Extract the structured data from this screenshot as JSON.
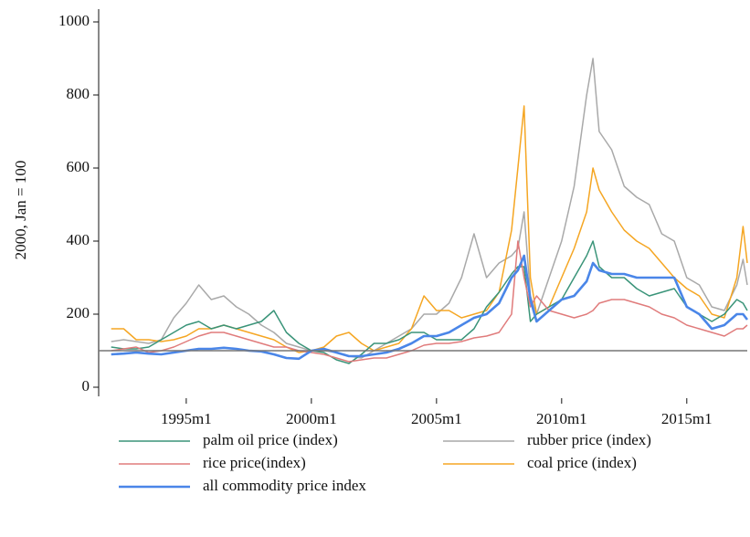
{
  "chart_data": {
    "type": "line",
    "y_label": "2000, Jan = 100",
    "x": [
      "1992m1",
      "1992m7",
      "1993m1",
      "1993m7",
      "1994m1",
      "1994m7",
      "1995m1",
      "1995m7",
      "1996m1",
      "1996m7",
      "1997m1",
      "1997m7",
      "1998m1",
      "1998m7",
      "1999m1",
      "1999m7",
      "2000m1",
      "2000m7",
      "2001m1",
      "2001m7",
      "2002m1",
      "2002m7",
      "2003m1",
      "2003m7",
      "2004m1",
      "2004m7",
      "2005m1",
      "2005m7",
      "2006m1",
      "2006m7",
      "2007m1",
      "2007m7",
      "2008m1",
      "2008m4",
      "2008m7",
      "2008m10",
      "2009m1",
      "2009m7",
      "2010m1",
      "2010m7",
      "2011m1",
      "2011m4",
      "2011m7",
      "2012m1",
      "2012m7",
      "2013m1",
      "2013m7",
      "2014m1",
      "2014m7",
      "2015m1",
      "2015m7",
      "2016m1",
      "2016m7",
      "2017m1",
      "2017m4",
      "2017m6"
    ],
    "series": [
      {
        "name": "palm oil price (index)",
        "color": "#3a9479",
        "width": 1.5,
        "values": [
          110,
          105,
          105,
          110,
          130,
          150,
          170,
          180,
          160,
          170,
          160,
          170,
          180,
          210,
          150,
          120,
          100,
          95,
          75,
          65,
          90,
          120,
          120,
          130,
          150,
          150,
          130,
          130,
          130,
          160,
          220,
          260,
          310,
          330,
          330,
          180,
          200,
          220,
          240,
          300,
          360,
          400,
          330,
          300,
          300,
          270,
          250,
          260,
          270,
          220,
          200,
          180,
          200,
          240,
          230,
          210
        ]
      },
      {
        "name": "rice price(index)",
        "color": "#e07b7b",
        "width": 1.5,
        "values": [
          100,
          105,
          110,
          95,
          100,
          110,
          125,
          140,
          150,
          150,
          140,
          130,
          120,
          110,
          110,
          100,
          95,
          90,
          80,
          70,
          75,
          80,
          80,
          90,
          100,
          115,
          120,
          120,
          125,
          135,
          140,
          150,
          200,
          400,
          300,
          220,
          250,
          210,
          200,
          190,
          200,
          210,
          230,
          240,
          240,
          230,
          220,
          200,
          190,
          170,
          160,
          150,
          140,
          160,
          160,
          170
        ]
      },
      {
        "name": "all commodity price index",
        "color": "#4a86e8",
        "width": 2.6,
        "values": [
          90,
          92,
          95,
          92,
          90,
          95,
          100,
          105,
          105,
          108,
          105,
          100,
          98,
          90,
          80,
          78,
          100,
          105,
          95,
          85,
          85,
          90,
          95,
          105,
          120,
          140,
          140,
          150,
          170,
          190,
          200,
          230,
          300,
          320,
          360,
          240,
          180,
          210,
          240,
          250,
          290,
          340,
          320,
          310,
          310,
          300,
          300,
          300,
          300,
          220,
          200,
          160,
          170,
          200,
          200,
          185
        ]
      },
      {
        "name": "rubber price (index)",
        "color": "#a9a9a9",
        "width": 1.5,
        "values": [
          125,
          130,
          125,
          120,
          130,
          190,
          230,
          280,
          240,
          250,
          220,
          200,
          170,
          150,
          120,
          110,
          100,
          100,
          95,
          85,
          80,
          100,
          120,
          140,
          160,
          200,
          200,
          230,
          300,
          420,
          300,
          340,
          360,
          380,
          480,
          250,
          200,
          300,
          400,
          550,
          800,
          900,
          700,
          650,
          550,
          520,
          500,
          420,
          400,
          300,
          280,
          220,
          210,
          280,
          350,
          280
        ]
      },
      {
        "name": "coal price (index)",
        "color": "#f5a623",
        "width": 1.5,
        "values": [
          160,
          160,
          130,
          130,
          125,
          130,
          140,
          160,
          160,
          170,
          160,
          150,
          140,
          130,
          110,
          95,
          100,
          110,
          140,
          150,
          120,
          100,
          110,
          120,
          160,
          250,
          210,
          210,
          190,
          200,
          210,
          260,
          430,
          600,
          770,
          300,
          200,
          220,
          300,
          380,
          480,
          600,
          540,
          480,
          430,
          400,
          380,
          340,
          300,
          270,
          250,
          200,
          190,
          300,
          440,
          340
        ]
      }
    ],
    "xlim": [
      "1991m7",
      "2017m6"
    ],
    "xticks": [
      "1995m1",
      "2000m1",
      "2005m1",
      "2010m1",
      "2015m1"
    ],
    "ylim": [
      -25,
      1035
    ],
    "yticks": [
      0,
      200,
      400,
      600,
      800,
      1000
    ],
    "reference_line": 100,
    "reference_color": "#777777",
    "legend": "bottom"
  }
}
